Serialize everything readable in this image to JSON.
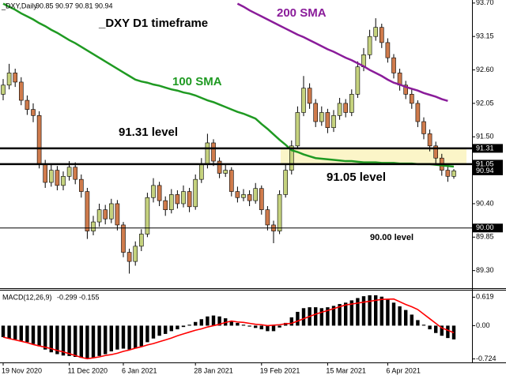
{
  "chart_data": [
    {
      "type": "candlestick",
      "symbol": "_DXY,Daily",
      "title": "_DXY D1 timeframe",
      "up_color": "#c5d27e",
      "down_color": "#cf7b4c",
      "open": [
        92.2,
        92.35,
        92.55,
        92.4,
        92.1,
        91.95,
        91.85,
        91.05,
        90.75,
        90.95,
        90.7,
        90.85,
        91.0,
        90.8,
        90.6,
        89.95,
        90.1,
        90.3,
        90.15,
        90.4,
        90.05,
        89.6,
        89.45,
        89.7,
        89.9,
        90.5,
        90.7,
        90.45,
        90.3,
        90.55,
        90.4,
        90.6,
        90.35,
        90.8,
        91.05,
        91.4,
        91.1,
        90.9,
        90.95,
        90.6,
        90.5,
        90.55,
        90.45,
        90.65,
        90.3,
        90.05,
        89.95,
        90.55,
        90.95,
        91.35,
        91.9,
        92.3,
        92.05,
        91.75,
        91.9,
        91.65,
        91.85,
        92.05,
        91.9,
        92.2,
        92.65,
        92.85,
        93.15,
        93.3,
        93.05,
        92.8,
        92.55,
        92.35,
        92.2,
        92.05,
        91.75,
        91.55,
        91.35,
        91.15,
        90.95,
        90.85
      ],
      "high": [
        92.45,
        92.7,
        92.62,
        92.48,
        92.18,
        92.05,
        91.92,
        91.12,
        91.05,
        91.02,
        90.93,
        91.1,
        91.08,
        90.88,
        90.66,
        90.2,
        90.4,
        90.38,
        90.48,
        90.46,
        90.1,
        89.66,
        89.78,
        89.98,
        90.58,
        90.82,
        90.76,
        90.52,
        90.64,
        90.62,
        90.7,
        90.66,
        90.88,
        91.15,
        91.55,
        91.46,
        91.16,
        91.05,
        91.0,
        90.68,
        90.64,
        90.62,
        90.74,
        90.7,
        90.36,
        90.12,
        90.62,
        91.04,
        91.44,
        92.0,
        92.5,
        92.38,
        92.12,
        92.0,
        91.96,
        91.94,
        92.14,
        92.12,
        92.28,
        92.74,
        92.96,
        93.26,
        93.45,
        93.36,
        93.12,
        92.86,
        92.62,
        92.42,
        92.28,
        92.1,
        91.82,
        91.62,
        91.42,
        91.22,
        91.02,
        90.97
      ],
      "low": [
        92.1,
        92.28,
        92.32,
        92.02,
        91.86,
        91.74,
        90.98,
        90.66,
        90.68,
        90.62,
        90.62,
        90.78,
        90.72,
        90.5,
        89.82,
        89.88,
        90.02,
        90.06,
        90.08,
        89.96,
        89.52,
        89.25,
        89.38,
        89.62,
        89.85,
        90.42,
        90.36,
        90.2,
        90.24,
        90.32,
        90.34,
        90.26,
        90.3,
        90.74,
        90.98,
        91.02,
        90.82,
        90.84,
        90.52,
        90.42,
        90.44,
        90.36,
        90.4,
        90.22,
        89.96,
        89.75,
        89.9,
        90.5,
        90.88,
        91.3,
        91.84,
        91.96,
        91.66,
        91.68,
        91.56,
        91.58,
        91.78,
        91.82,
        91.84,
        92.14,
        92.58,
        92.78,
        93.08,
        92.96,
        92.72,
        92.46,
        92.26,
        92.12,
        91.96,
        91.66,
        91.46,
        91.26,
        91.06,
        90.86,
        90.76,
        90.81
      ],
      "close": [
        92.35,
        92.55,
        92.4,
        92.1,
        91.95,
        91.85,
        91.05,
        90.75,
        90.95,
        90.7,
        90.85,
        91.0,
        90.8,
        90.6,
        89.95,
        90.1,
        90.3,
        90.15,
        90.4,
        90.05,
        89.6,
        89.45,
        89.7,
        89.9,
        90.5,
        90.7,
        90.45,
        90.3,
        90.55,
        90.4,
        90.6,
        90.35,
        90.8,
        91.05,
        91.4,
        91.1,
        90.9,
        90.95,
        90.6,
        90.5,
        90.55,
        90.45,
        90.65,
        90.3,
        90.05,
        89.95,
        90.55,
        90.95,
        91.35,
        91.9,
        92.3,
        92.05,
        91.75,
        91.9,
        91.65,
        91.85,
        92.05,
        91.9,
        92.2,
        92.65,
        92.85,
        93.15,
        93.3,
        93.05,
        92.8,
        92.55,
        92.35,
        92.2,
        92.05,
        91.75,
        91.55,
        91.35,
        91.15,
        90.95,
        90.85,
        90.94
      ],
      "lines": [
        {
          "name": "100 SMA",
          "color": "#1f9a22",
          "values": [
            93.69,
            93.64,
            93.59,
            93.53,
            93.48,
            93.43,
            93.37,
            93.32,
            93.26,
            93.21,
            93.15,
            93.09,
            93.04,
            92.98,
            92.92,
            92.86,
            92.8,
            92.74,
            92.68,
            92.62,
            92.56,
            92.5,
            92.44,
            92.41,
            92.39,
            92.36,
            92.34,
            92.31,
            92.28,
            92.26,
            92.23,
            92.21,
            92.18,
            92.14,
            92.1,
            92.07,
            92.03,
            91.99,
            91.95,
            91.91,
            91.88,
            91.84,
            91.8,
            91.71,
            91.63,
            91.54,
            91.45,
            91.37,
            91.28,
            91.25,
            91.21,
            91.18,
            91.15,
            91.14,
            91.13,
            91.12,
            91.11,
            91.1,
            91.1,
            91.09,
            91.08,
            91.08,
            91.08,
            91.07,
            91.07,
            91.07,
            91.06,
            91.06,
            91.06,
            91.05,
            91.05,
            91.05,
            91.04,
            91.03,
            91.02,
            91.01
          ]
        },
        {
          "name": "200 SMA",
          "color": "#8a1c9a",
          "values": [
            null,
            null,
            null,
            null,
            null,
            null,
            null,
            null,
            null,
            null,
            null,
            null,
            null,
            null,
            null,
            null,
            null,
            null,
            null,
            null,
            null,
            null,
            null,
            null,
            null,
            null,
            null,
            null,
            null,
            null,
            null,
            null,
            null,
            null,
            null,
            null,
            null,
            null,
            null,
            93.69,
            93.64,
            93.58,
            93.53,
            93.48,
            93.43,
            93.38,
            93.33,
            93.28,
            93.23,
            93.18,
            93.14,
            93.09,
            93.04,
            92.99,
            92.94,
            92.9,
            92.85,
            92.8,
            92.76,
            92.71,
            92.66,
            92.6,
            92.55,
            92.5,
            92.44,
            92.39,
            92.36,
            92.32,
            92.29,
            92.26,
            92.22,
            92.19,
            92.16,
            92.12,
            92.09,
            null
          ]
        }
      ],
      "levels": [
        {
          "value": 91.31,
          "label": "91.31 level"
        },
        {
          "value": 91.05,
          "label": "91.05 level"
        },
        {
          "value": 90.0,
          "label": "90.00 level"
        }
      ],
      "zone": [
        91.05,
        91.31
      ],
      "zone_color": "#fbf5c8",
      "ylim": [
        89.01,
        93.75
      ],
      "yticks": [
        {
          "value": 93.7,
          "label": "93.70"
        },
        93.15,
        {
          "value": 92.6,
          "label": "92.60"
        },
        92.05,
        {
          "value": 91.5,
          "label": "91.50"
        },
        {
          "value": 90.4,
          "label": "90.40"
        },
        89.85,
        {
          "value": 89.3,
          "label": "89.30"
        }
      ],
      "price_labels": [
        91.31,
        91.05,
        90.94,
        {
          "value": 90.0,
          "label": "90.00"
        }
      ]
    },
    {
      "type": "macd",
      "title": "MACD(12,26,9)",
      "categories": [
        "19 Nov 2020",
        null,
        null,
        null,
        null,
        null,
        null,
        null,
        null,
        null,
        null,
        "11 Dec 2020",
        null,
        null,
        null,
        null,
        null,
        null,
        null,
        null,
        "6 Jan 2021",
        null,
        null,
        null,
        null,
        null,
        null,
        null,
        null,
        null,
        null,
        null,
        "28 Jan 2021",
        null,
        null,
        null,
        null,
        null,
        null,
        null,
        null,
        null,
        null,
        "19 Feb 2021",
        null,
        null,
        null,
        null,
        null,
        null,
        null,
        null,
        null,
        null,
        "15 Mar 2021",
        null,
        null,
        null,
        null,
        null,
        null,
        null,
        null,
        null,
        "6 Apr 2021",
        null,
        null,
        null,
        null,
        null,
        null,
        null,
        null,
        null,
        null,
        null
      ],
      "histogram": {
        "color": "#000000",
        "values": [
          -0.25,
          -0.28,
          -0.3,
          -0.33,
          -0.36,
          -0.4,
          -0.45,
          -0.52,
          -0.58,
          -0.62,
          -0.65,
          -0.66,
          -0.68,
          -0.7,
          -0.72,
          -0.7,
          -0.66,
          -0.62,
          -0.56,
          -0.52,
          -0.5,
          -0.52,
          -0.5,
          -0.45,
          -0.36,
          -0.28,
          -0.22,
          -0.18,
          -0.12,
          -0.08,
          -0.03,
          0.02,
          0.08,
          0.14,
          0.2,
          0.22,
          0.2,
          0.16,
          0.1,
          0.06,
          0.02,
          -0.02,
          -0.05,
          -0.08,
          -0.12,
          -0.12,
          -0.04,
          0.06,
          0.18,
          0.3,
          0.38,
          0.4,
          0.4,
          0.38,
          0.4,
          0.43,
          0.47,
          0.5,
          0.55,
          0.6,
          0.64,
          0.66,
          0.66,
          0.63,
          0.58,
          0.5,
          0.42,
          0.34,
          0.24,
          0.12,
          0.02,
          -0.08,
          -0.16,
          -0.22,
          -0.27,
          -0.299
        ]
      },
      "signal": {
        "color": "#ff0000",
        "values": [
          -0.25,
          -0.28,
          -0.31,
          -0.34,
          -0.37,
          -0.41,
          -0.44,
          -0.47,
          -0.5,
          -0.54,
          -0.57,
          -0.61,
          -0.65,
          -0.69,
          -0.72,
          -0.7,
          -0.68,
          -0.65,
          -0.63,
          -0.6,
          -0.56,
          -0.53,
          -0.49,
          -0.46,
          -0.42,
          -0.39,
          -0.35,
          -0.31,
          -0.27,
          -0.22,
          -0.18,
          -0.14,
          -0.1,
          -0.07,
          -0.03,
          0.0,
          0.03,
          0.07,
          0.1,
          0.08,
          0.07,
          0.05,
          0.03,
          0.02,
          0.0,
          0.01,
          0.02,
          0.04,
          0.05,
          0.1,
          0.15,
          0.2,
          0.25,
          0.29,
          0.33,
          0.37,
          0.41,
          0.45,
          0.47,
          0.49,
          0.51,
          0.53,
          0.55,
          0.57,
          0.575,
          0.58,
          0.52,
          0.46,
          0.41,
          0.35,
          0.25,
          0.15,
          0.05,
          -0.05,
          -0.1,
          -0.155
        ]
      },
      "ylim": [
        -0.8,
        0.78
      ],
      "yticks": [
        0.619,
        {
          "value": 0,
          "label": "0.00"
        },
        -0.724
      ]
    }
  ]
}
